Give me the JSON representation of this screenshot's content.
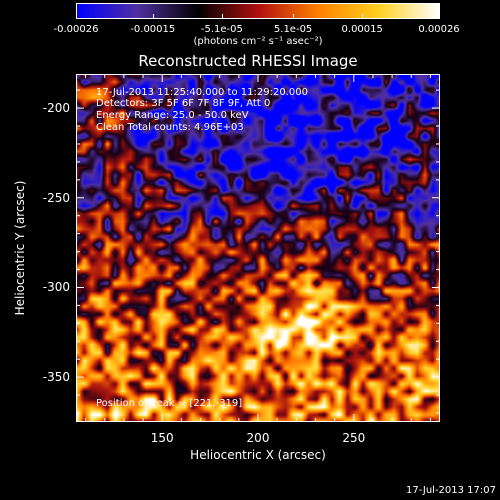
{
  "colorbar": {
    "tick_labels": [
      "-0.00026",
      "-0.00015",
      "-5.1e-05",
      "5.1e-05",
      "0.00015",
      "0.00026"
    ],
    "tick_values": [
      -0.00026,
      -0.00015,
      -5.1e-05,
      5.1e-05,
      0.00015,
      0.00026
    ],
    "units": "(photons cm⁻² s⁻¹ asec⁻²)",
    "colors": [
      "#0000ff",
      "#5030a0",
      "#000000",
      "#b01010",
      "#ff8000",
      "#ffd020",
      "#ffffff"
    ]
  },
  "chart_data": {
    "type": "heatmap",
    "title": "Reconstructed RHESSI Image",
    "xlabel": "Heliocentric X (arcsec)",
    "ylabel": "Heliocentric Y (arcsec)",
    "xlim": [
      105,
      295
    ],
    "ylim": [
      -375,
      -181
    ],
    "x_ticks": [
      150,
      200,
      250
    ],
    "y_ticks": [
      -200,
      -250,
      -300,
      -350
    ],
    "zlim": [
      -0.00026,
      0.00026
    ],
    "peak": [
      221,
      -319
    ],
    "annotations": {
      "time_range": "17-Jul-2013 11:25:40.000 to 11:29:20.000",
      "detectors": "Detectors: 3F 5F 6F 7F 8F 9F, Att 0",
      "energy": "Energy Range: 25.0 - 50.0 keV",
      "clean": "Clean     Total counts: 4.96E+03",
      "peak_text": "Position of Peak = [221,-319]"
    }
  },
  "footer": {
    "timestamp": "17-Jul-2013 17:07"
  }
}
